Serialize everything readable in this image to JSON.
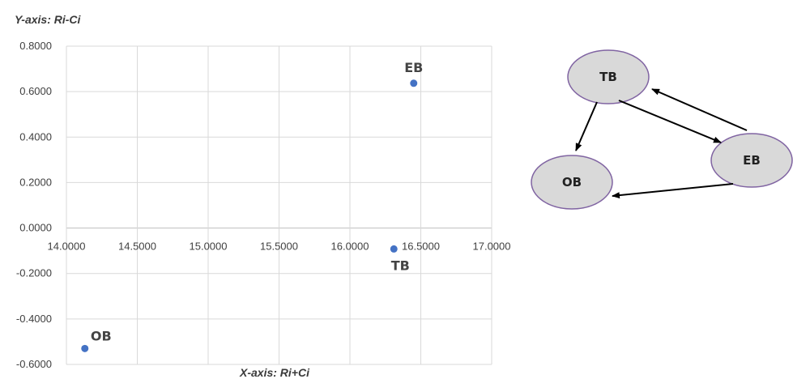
{
  "chart_data": {
    "type": "scatter",
    "xlabel": "X-axis: Ri+Ci",
    "ylabel": "Y-axis: Ri-Ci",
    "xlim": [
      14.0,
      17.0
    ],
    "ylim": [
      -0.6,
      0.8
    ],
    "x_ticks": [
      "14.0000",
      "14.5000",
      "15.0000",
      "15.5000",
      "16.0000",
      "16.5000",
      "17.0000"
    ],
    "y_ticks": [
      "0.8000",
      "0.6000",
      "0.4000",
      "0.2000",
      "0.0000",
      "-0.2000",
      "-0.4000",
      "-0.6000"
    ],
    "grid": true,
    "marker_color": "#4472C4",
    "points": [
      {
        "label": "EB",
        "x": 16.45,
        "y": 0.637
      },
      {
        "label": "TB",
        "x": 16.31,
        "y": -0.092
      },
      {
        "label": "OB",
        "x": 14.13,
        "y": -0.53
      }
    ]
  },
  "diagram": {
    "node_fill": "#d9d9d9",
    "node_stroke": "#8064a2",
    "nodes": [
      "TB",
      "EB",
      "OB"
    ],
    "edges": [
      {
        "from": "TB",
        "to": "OB"
      },
      {
        "from": "TB",
        "to": "EB"
      },
      {
        "from": "EB",
        "to": "TB"
      },
      {
        "from": "EB",
        "to": "OB"
      }
    ]
  }
}
